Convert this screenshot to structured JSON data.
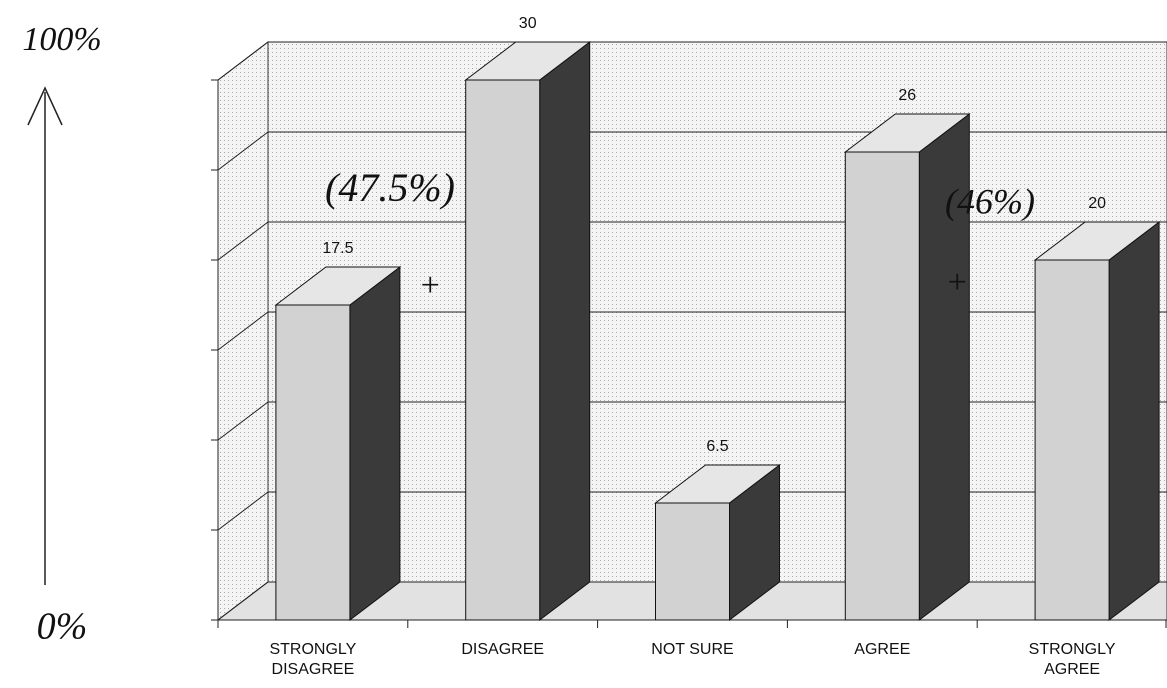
{
  "chart_data": {
    "type": "bar3d",
    "categories": [
      "STRONGLY DISAGREE",
      "DISAGREE",
      "NOT SURE",
      "AGREE",
      "STRONGLY AGREE"
    ],
    "values": [
      17.5,
      30,
      6.5,
      26,
      20
    ],
    "ylim": [
      0,
      30
    ],
    "yticks": [
      0,
      5,
      10,
      15,
      20,
      25,
      30
    ],
    "grid": true,
    "colors": {
      "front": "#d2d2d2",
      "top": "#e6e6e6",
      "side": "#3a3a3a",
      "wall": "#ededed"
    },
    "annotations": {
      "top": "100%",
      "bottom": "0%",
      "left_sum": "(47.5%)",
      "right_sum": "(46%)",
      "plus": "+"
    }
  }
}
